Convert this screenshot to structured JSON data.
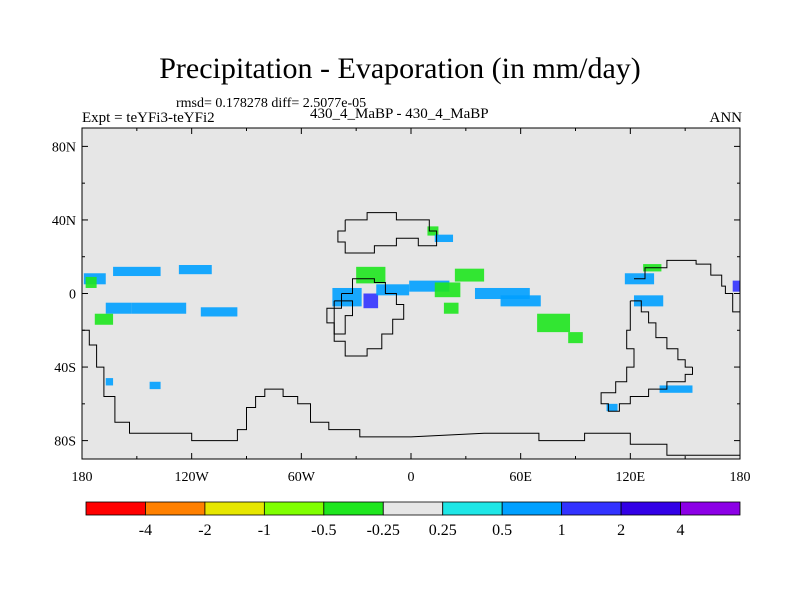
{
  "chart_data": {
    "type": "heatmap",
    "title": "Precipitation - Evaporation (in mm/day)",
    "stats_text": "rmsd= 0.178278 diff= 2.5077e-05",
    "left_label": "Expt = teYFi3-teYFi2",
    "center_label": "430_4_MaBP - 430_4_MaBP",
    "right_label": "ANN",
    "x_range": [
      -180,
      180
    ],
    "y_range": [
      -90,
      90
    ],
    "x_ticks": [
      {
        "value": -180,
        "label": "180"
      },
      {
        "value": -120,
        "label": "120W"
      },
      {
        "value": -60,
        "label": "60W"
      },
      {
        "value": 0,
        "label": "0"
      },
      {
        "value": 60,
        "label": "60E"
      },
      {
        "value": 120,
        "label": "120E"
      },
      {
        "value": 180,
        "label": "180"
      }
    ],
    "y_ticks": [
      {
        "value": 80,
        "label": "80N"
      },
      {
        "value": 40,
        "label": "40N"
      },
      {
        "value": 0,
        "label": "0"
      },
      {
        "value": -40,
        "label": "40S"
      },
      {
        "value": -80,
        "label": "80S"
      }
    ],
    "background_color": "#e6e6e6",
    "colorbar": {
      "colors": [
        "#ff0000",
        "#ff8000",
        "#e6e600",
        "#80ff00",
        "#1ee61e",
        "#e6e6e6",
        "#1ee6e6",
        "#00a0ff",
        "#3232ff",
        "#3200e6",
        "#8c00e6"
      ],
      "labels": [
        "-4",
        "-2",
        "-1",
        "-0.5",
        "-0.25",
        "0.25",
        "0.5",
        "1",
        "2",
        "4"
      ]
    },
    "anomaly_patches": [
      {
        "lon": -173,
        "lat": 8,
        "w": 12,
        "h": 6,
        "level": "0.5"
      },
      {
        "lon": -150,
        "lat": 12,
        "w": 26,
        "h": 5,
        "level": "0.5"
      },
      {
        "lon": -118,
        "lat": 13,
        "w": 18,
        "h": 5,
        "level": "0.5"
      },
      {
        "lon": -160,
        "lat": -8,
        "w": 14,
        "h": 6,
        "level": "0.5"
      },
      {
        "lon": -138,
        "lat": -8,
        "w": 30,
        "h": 6,
        "level": "0.5"
      },
      {
        "lon": -105,
        "lat": -10,
        "w": 20,
        "h": 5,
        "level": "0.5"
      },
      {
        "lon": -168,
        "lat": -14,
        "w": 10,
        "h": 6,
        "level": "-0.25"
      },
      {
        "lon": -175,
        "lat": 6,
        "w": 6,
        "h": 6,
        "level": "-0.25"
      },
      {
        "lon": -35,
        "lat": -2,
        "w": 16,
        "h": 10,
        "level": "0.5"
      },
      {
        "lon": -22,
        "lat": 10,
        "w": 16,
        "h": 9,
        "level": "-0.25"
      },
      {
        "lon": -22,
        "lat": -4,
        "w": 8,
        "h": 8,
        "level": "1"
      },
      {
        "lon": -10,
        "lat": 2,
        "w": 18,
        "h": 6,
        "level": "0.5"
      },
      {
        "lon": 10,
        "lat": 4,
        "w": 22,
        "h": 6,
        "level": "0.5"
      },
      {
        "lon": 32,
        "lat": 10,
        "w": 16,
        "h": 7,
        "level": "-0.25"
      },
      {
        "lon": 20,
        "lat": 2,
        "w": 14,
        "h": 8,
        "level": "-0.25"
      },
      {
        "lon": 22,
        "lat": -8,
        "w": 8,
        "h": 6,
        "level": "-0.25"
      },
      {
        "lon": 50,
        "lat": 0,
        "w": 30,
        "h": 6,
        "level": "0.5"
      },
      {
        "lon": 60,
        "lat": -4,
        "w": 22,
        "h": 6,
        "level": "0.5"
      },
      {
        "lon": 78,
        "lat": -16,
        "w": 18,
        "h": 10,
        "level": "-0.25"
      },
      {
        "lon": 90,
        "lat": -24,
        "w": 8,
        "h": 6,
        "level": "-0.25"
      },
      {
        "lon": 12,
        "lat": 34,
        "w": 6,
        "h": 5,
        "level": "-0.25"
      },
      {
        "lon": 18,
        "lat": 30,
        "w": 10,
        "h": 4,
        "level": "0.5"
      },
      {
        "lon": 125,
        "lat": 8,
        "w": 16,
        "h": 6,
        "level": "0.5"
      },
      {
        "lon": 132,
        "lat": 14,
        "w": 10,
        "h": 4,
        "level": "-0.25"
      },
      {
        "lon": 130,
        "lat": -4,
        "w": 16,
        "h": 6,
        "level": "0.5"
      },
      {
        "lon": 145,
        "lat": -52,
        "w": 18,
        "h": 4,
        "level": "0.5"
      },
      {
        "lon": 178,
        "lat": 4,
        "w": 4,
        "h": 6,
        "level": "1"
      },
      {
        "lon": -165,
        "lat": -48,
        "w": 4,
        "h": 4,
        "level": "0.5"
      },
      {
        "lon": -140,
        "lat": -50,
        "w": 6,
        "h": 4,
        "level": "0.5"
      },
      {
        "lon": 110,
        "lat": -62,
        "w": 6,
        "h": 4,
        "level": "0.5"
      }
    ],
    "land_outlines": [
      [
        [
          -180,
          -20
        ],
        [
          -176,
          -20
        ],
        [
          -176,
          -28
        ],
        [
          -172,
          -28
        ],
        [
          -172,
          -40
        ],
        [
          -168,
          -40
        ],
        [
          -168,
          -56
        ],
        [
          -162,
          -56
        ],
        [
          -162,
          -70
        ],
        [
          -154,
          -70
        ],
        [
          -154,
          -76
        ],
        [
          -120,
          -76
        ],
        [
          -120,
          -80
        ],
        [
          -95,
          -80
        ],
        [
          -95,
          -74
        ],
        [
          -90,
          -74
        ],
        [
          -90,
          -62
        ],
        [
          -85,
          -62
        ],
        [
          -85,
          -56
        ],
        [
          -80,
          -56
        ],
        [
          -80,
          -52
        ],
        [
          -70,
          -52
        ],
        [
          -70,
          -56
        ],
        [
          -62,
          -56
        ],
        [
          -62,
          -60
        ],
        [
          -55,
          -60
        ],
        [
          -55,
          -70
        ],
        [
          -45,
          -70
        ],
        [
          -45,
          -74
        ],
        [
          -28,
          -74
        ],
        [
          -28,
          -78
        ],
        [
          0,
          -78
        ],
        [
          40,
          -76
        ],
        [
          70,
          -76
        ],
        [
          70,
          -80
        ],
        [
          95,
          -80
        ],
        [
          95,
          -76
        ],
        [
          120,
          -76
        ],
        [
          120,
          -82
        ],
        [
          140,
          -82
        ],
        [
          140,
          -88
        ],
        [
          180,
          -88
        ]
      ],
      [
        [
          -38,
          0
        ],
        [
          -32,
          0
        ],
        [
          -32,
          8
        ],
        [
          -20,
          8
        ],
        [
          -20,
          6
        ],
        [
          -14,
          6
        ],
        [
          -14,
          0
        ],
        [
          -8,
          0
        ],
        [
          -8,
          -6
        ],
        [
          -4,
          -6
        ],
        [
          -4,
          -14
        ],
        [
          -10,
          -14
        ],
        [
          -10,
          -22
        ],
        [
          -16,
          -22
        ],
        [
          -16,
          -30
        ],
        [
          -24,
          -30
        ],
        [
          -24,
          -34
        ],
        [
          -36,
          -34
        ],
        [
          -36,
          -26
        ],
        [
          -42,
          -26
        ],
        [
          -42,
          -16
        ],
        [
          -46,
          -16
        ],
        [
          -46,
          -8
        ],
        [
          -38,
          -8
        ],
        [
          -38,
          0
        ]
      ],
      [
        [
          -36,
          40
        ],
        [
          -24,
          40
        ],
        [
          -24,
          44
        ],
        [
          -8,
          44
        ],
        [
          -8,
          40
        ],
        [
          10,
          40
        ],
        [
          10,
          34
        ],
        [
          14,
          34
        ],
        [
          14,
          26
        ],
        [
          4,
          26
        ],
        [
          4,
          30
        ],
        [
          -8,
          30
        ],
        [
          -8,
          26
        ],
        [
          -20,
          26
        ],
        [
          -20,
          22
        ],
        [
          -36,
          22
        ],
        [
          -36,
          28
        ],
        [
          -40,
          28
        ],
        [
          -40,
          34
        ],
        [
          -36,
          34
        ],
        [
          -36,
          40
        ]
      ],
      [
        [
          122,
          8
        ],
        [
          128,
          8
        ],
        [
          128,
          14
        ],
        [
          140,
          14
        ],
        [
          140,
          18
        ],
        [
          156,
          18
        ],
        [
          156,
          16
        ],
        [
          164,
          16
        ],
        [
          164,
          10
        ],
        [
          170,
          10
        ],
        [
          170,
          4
        ],
        [
          172,
          4
        ],
        [
          172,
          0
        ],
        [
          176,
          0
        ],
        [
          176,
          -10
        ],
        [
          180,
          -10
        ]
      ],
      [
        [
          120,
          -4
        ],
        [
          126,
          -4
        ],
        [
          126,
          -10
        ],
        [
          130,
          -10
        ],
        [
          130,
          -16
        ],
        [
          134,
          -16
        ],
        [
          134,
          -24
        ],
        [
          140,
          -24
        ],
        [
          140,
          -30
        ],
        [
          146,
          -30
        ],
        [
          146,
          -36
        ],
        [
          150,
          -36
        ],
        [
          150,
          -40
        ],
        [
          154,
          -40
        ]
      ],
      [
        [
          154,
          -40
        ],
        [
          154,
          -44
        ],
        [
          150,
          -44
        ],
        [
          150,
          -48
        ],
        [
          140,
          -48
        ],
        [
          140,
          -52
        ],
        [
          130,
          -52
        ],
        [
          130,
          -56
        ],
        [
          120,
          -56
        ],
        [
          120,
          -60
        ],
        [
          114,
          -60
        ],
        [
          114,
          -64
        ],
        [
          108,
          -64
        ],
        [
          108,
          -60
        ],
        [
          104,
          -60
        ],
        [
          104,
          -54
        ],
        [
          112,
          -54
        ],
        [
          112,
          -48
        ],
        [
          118,
          -48
        ],
        [
          118,
          -40
        ],
        [
          122,
          -40
        ],
        [
          122,
          -30
        ],
        [
          118,
          -30
        ],
        [
          118,
          -20
        ],
        [
          120,
          -20
        ],
        [
          120,
          -4
        ]
      ],
      [
        [
          -42,
          -4
        ],
        [
          -32,
          -4
        ],
        [
          -32,
          -12
        ],
        [
          -36,
          -12
        ],
        [
          -36,
          -22
        ],
        [
          -42,
          -22
        ],
        [
          -42,
          -4
        ]
      ]
    ]
  }
}
